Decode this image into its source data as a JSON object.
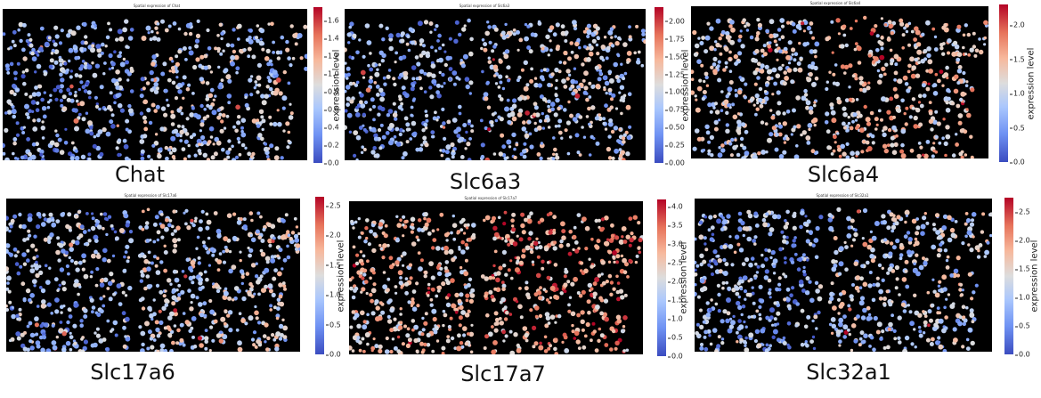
{
  "colors": {
    "background": "#000000",
    "cmap": [
      "#3b4cc0",
      "#6f92f3",
      "#aac7fd",
      "#dddddd",
      "#f7b89c",
      "#e7745b",
      "#b40426"
    ]
  },
  "chart_data": [
    {
      "type": "scatter",
      "title": "Spatial expression of Chat",
      "gene": "Chat",
      "colorbar_label": "expression level",
      "colorbar_range": [
        0,
        1.75
      ],
      "colorbar_ticks": [
        "0.0",
        "0.2",
        "0.4",
        "0.6",
        "0.8",
        "1.0",
        "1.2",
        "1.4",
        "1.6"
      ],
      "color_mean": 0.28,
      "seed": 11
    },
    {
      "type": "scatter",
      "title": "Spatial expression of Slc6a3",
      "gene": "Slc6a3",
      "colorbar_label": "expression level",
      "colorbar_range": [
        0,
        2.2
      ],
      "colorbar_ticks": [
        "0.00",
        "0.25",
        "0.50",
        "0.75",
        "1.00",
        "1.25",
        "1.50",
        "1.75",
        "2.00"
      ],
      "color_mean": 0.3,
      "seed": 23
    },
    {
      "type": "scatter",
      "title": "Spatial expression of Slc6a4",
      "gene": "Slc6a4",
      "colorbar_label": "expression level",
      "colorbar_range": [
        0,
        2.3
      ],
      "colorbar_ticks": [
        "0.0",
        "0.5",
        "1.0",
        "1.5",
        "2.0"
      ],
      "color_mean": 0.45,
      "seed": 37
    },
    {
      "type": "scatter",
      "title": "Spatial expression of Slc17a6",
      "gene": "Slc17a6",
      "colorbar_label": "expression level",
      "colorbar_range": [
        0,
        2.65
      ],
      "colorbar_ticks": [
        "0.0",
        "0.5",
        "1.0",
        "1.5",
        "2.0",
        "2.5"
      ],
      "color_mean": 0.32,
      "seed": 41
    },
    {
      "type": "scatter",
      "title": "Spatial expression of Slc17a7",
      "gene": "Slc17a7",
      "colorbar_label": "expression level",
      "colorbar_range": [
        0,
        4.2
      ],
      "colorbar_ticks": [
        "0.0",
        "0.5",
        "1.0",
        "1.5",
        "2.0",
        "2.5",
        "3.0",
        "3.5",
        "4.0"
      ],
      "color_mean": 0.58,
      "seed": 53
    },
    {
      "type": "scatter",
      "title": "Spatial expression of Slc32a1",
      "gene": "Slc32a1",
      "colorbar_label": "expression level",
      "colorbar_range": [
        0,
        2.75
      ],
      "colorbar_ticks": [
        "0.0",
        "0.5",
        "1.0",
        "1.5",
        "2.0",
        "2.5"
      ],
      "color_mean": 0.3,
      "seed": 67
    }
  ]
}
